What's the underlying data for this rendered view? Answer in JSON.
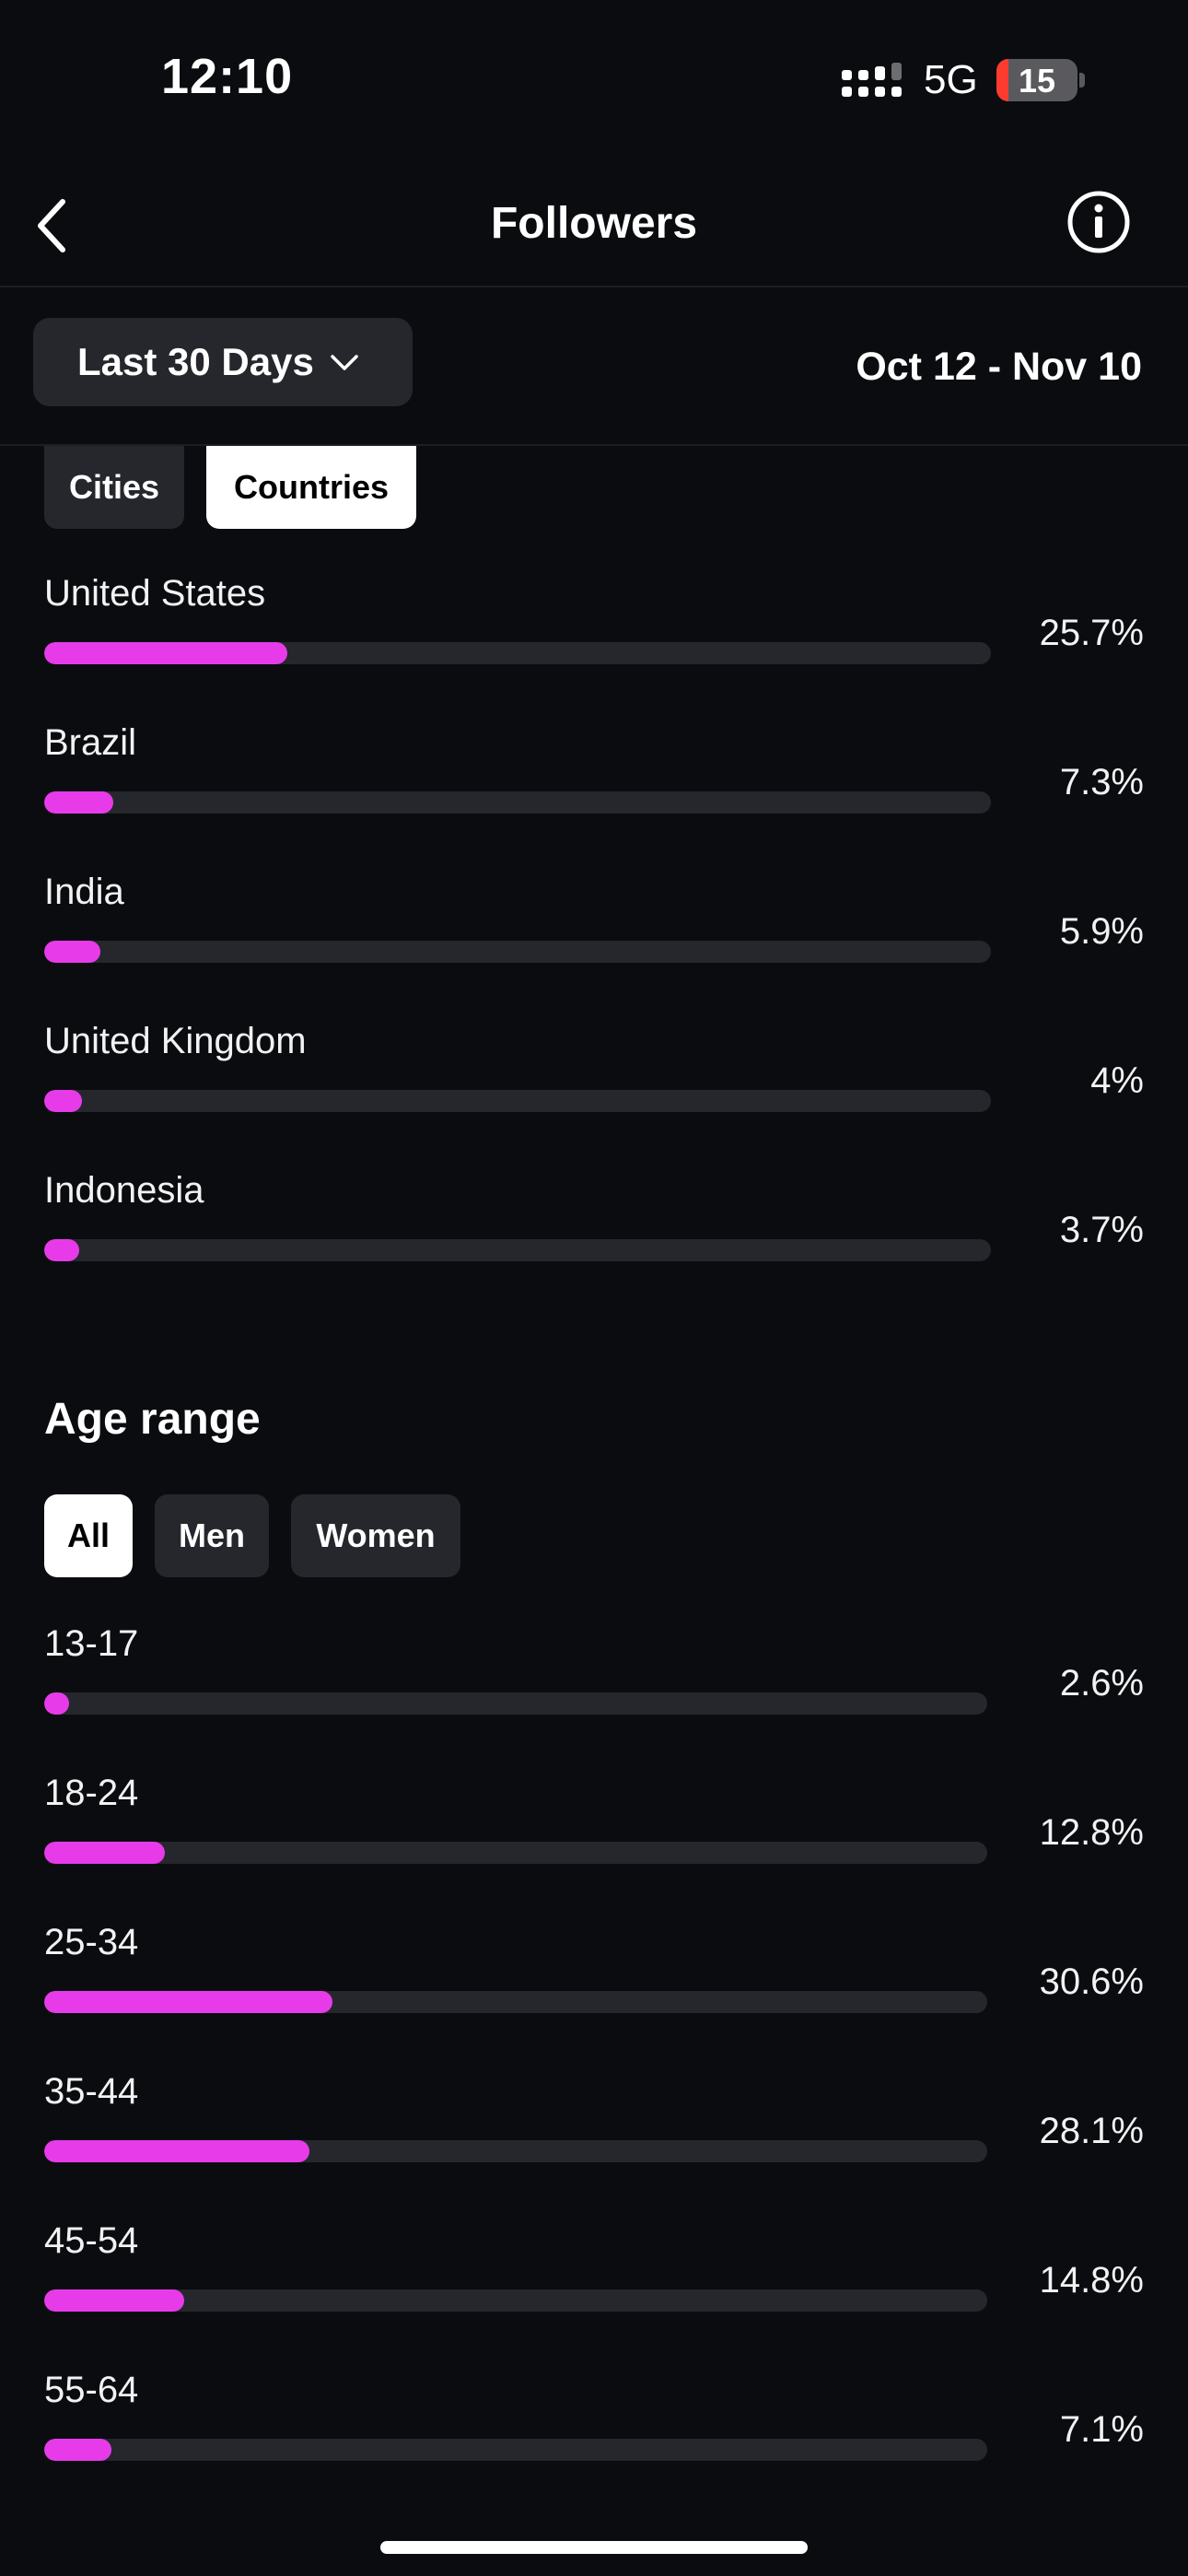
{
  "status_bar": {
    "time": "12:10",
    "network": "5G",
    "battery_level": "15"
  },
  "header": {
    "title": "Followers",
    "back_icon": "chevron-left-icon",
    "info_icon": "info-icon"
  },
  "date_filter": {
    "range_label": "Last 30 Days",
    "date_range": "Oct 12 - Nov 10"
  },
  "location": {
    "tabs": [
      {
        "label": "Cities",
        "active": false
      },
      {
        "label": "Countries",
        "active": true
      }
    ],
    "items": [
      {
        "label": "United States",
        "value": "25.7%",
        "fraction": 0.257
      },
      {
        "label": "Brazil",
        "value": "7.3%",
        "fraction": 0.073
      },
      {
        "label": "India",
        "value": "5.9%",
        "fraction": 0.059
      },
      {
        "label": "United Kingdom",
        "value": "4%",
        "fraction": 0.04
      },
      {
        "label": "Indonesia",
        "value": "3.7%",
        "fraction": 0.037
      }
    ]
  },
  "age": {
    "title": "Age range",
    "tabs": [
      {
        "label": "All",
        "active": true
      },
      {
        "label": "Men",
        "active": false
      },
      {
        "label": "Women",
        "active": false
      }
    ],
    "items": [
      {
        "label": "13-17",
        "value": "2.6%",
        "fraction": 0.026
      },
      {
        "label": "18-24",
        "value": "12.8%",
        "fraction": 0.128
      },
      {
        "label": "25-34",
        "value": "30.6%",
        "fraction": 0.306
      },
      {
        "label": "35-44",
        "value": "28.1%",
        "fraction": 0.281
      },
      {
        "label": "45-54",
        "value": "14.8%",
        "fraction": 0.148
      },
      {
        "label": "55-64",
        "value": "7.1%",
        "fraction": 0.071
      }
    ]
  },
  "colors": {
    "accent": "#e73bea",
    "track": "#26272c",
    "background": "#0b0c10"
  }
}
